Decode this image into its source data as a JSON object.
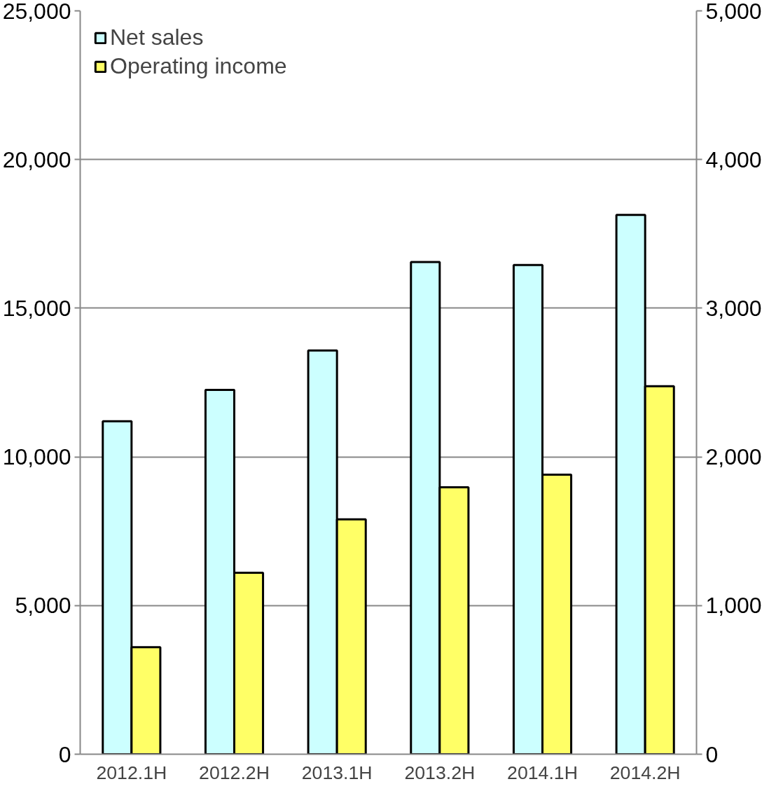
{
  "chart_data": {
    "type": "bar",
    "categories": [
      "2012.1H",
      "2012.2H",
      "2013.1H",
      "2013.2H",
      "2014.1H",
      "2014.2H"
    ],
    "series": [
      {
        "name": "Net sales",
        "color": "#ccffff",
        "values": [
          11200,
          12250,
          13580,
          16550,
          16450,
          18140
        ]
      },
      {
        "name": "Operating income",
        "color": "#ffff66",
        "axis": "y2",
        "values": [
          720,
          1220,
          1580,
          1795,
          1880,
          2475
        ]
      }
    ],
    "ylim": [
      0,
      25000
    ],
    "yticks": [
      {
        "value": 0,
        "label": "0"
      },
      {
        "value": 5000,
        "label": "5,000"
      },
      {
        "value": 10000,
        "label": "10,000"
      },
      {
        "value": 15000,
        "label": "15,000"
      },
      {
        "value": 20000,
        "label": "20,000"
      },
      {
        "value": 25000,
        "label": "25,000"
      }
    ],
    "y2lim": [
      0,
      5000
    ],
    "y2ticks": [
      {
        "value": 0,
        "label": "0"
      },
      {
        "value": 1000,
        "label": "1,000"
      },
      {
        "value": 2000,
        "label": "2,000"
      },
      {
        "value": 3000,
        "label": "3,000"
      },
      {
        "value": 4000,
        "label": "4,000"
      },
      {
        "value": 5000,
        "label": "5,000"
      }
    ],
    "grid": "y",
    "legend": "top left"
  }
}
